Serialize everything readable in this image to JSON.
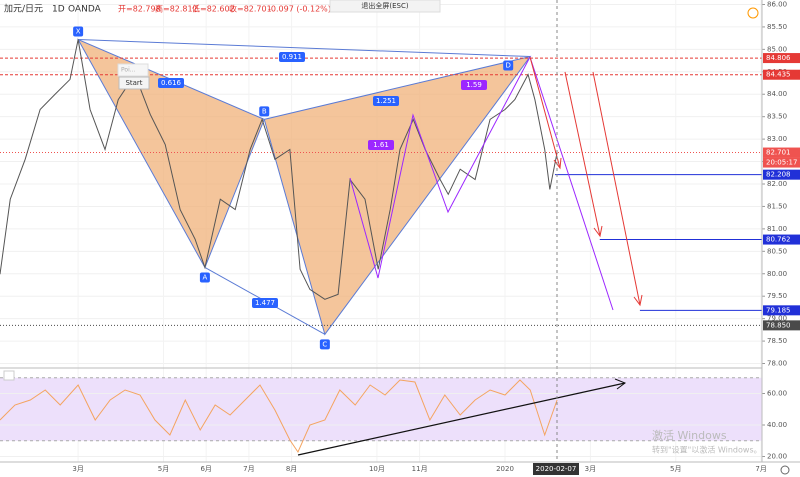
{
  "header": {
    "symbol": "加元/日元",
    "interval": "1D",
    "source": "OANDA",
    "ohlc": [
      "开=82.798",
      "高=82.812",
      "低=82.602",
      "收=82.701"
    ],
    "change": "-0.097 (-0.12%)"
  },
  "exit_fullscreen": "退出全屏(ESC)",
  "tool_popup": {
    "label": "Poi...",
    "button": "Start"
  },
  "watermark": [
    "激活 Windows",
    "转到\"设置\"以激活 Windows。"
  ],
  "date_marker": "2020-02-07",
  "chart_data": [
    {
      "type": "line",
      "color": "#555555",
      "x": [
        1.17,
        1.41,
        1.76,
        2.11,
        2.46,
        2.81,
        3.0,
        3.28,
        3.63,
        3.94,
        4.33,
        4.69,
        5.04,
        5.39,
        5.74,
        5.97,
        6.33,
        6.68,
        7.03,
        7.31,
        7.61,
        7.96,
        8.2,
        8.43,
        8.78,
        9.09,
        9.37,
        9.72,
        10.03,
        10.31,
        10.54,
        10.85,
        11.13,
        11.48,
        11.67,
        11.95,
        12.3,
        12.65,
        13.0,
        13.23,
        13.54,
        13.7,
        13.93,
        14.05,
        14.22
      ],
      "values": [
        79.99,
        81.66,
        82.55,
        83.66,
        84.0,
        84.33,
        85.22,
        83.66,
        82.77,
        83.88,
        84.44,
        83.55,
        82.88,
        81.43,
        80.77,
        80.14,
        81.66,
        81.43,
        82.77,
        83.44,
        82.55,
        82.77,
        80.1,
        79.65,
        79.43,
        79.54,
        82.1,
        81.66,
        80.1,
        81.43,
        82.77,
        83.44,
        82.77,
        82.1,
        81.77,
        82.33,
        82.1,
        83.44,
        83.66,
        83.88,
        84.44,
        83.88,
        82.77,
        81.88,
        82.7
      ],
      "xlim": [
        1.17,
        19.02
      ],
      "ylim": [
        77.9,
        86.1
      ],
      "xticks": [
        {
          "value": 3,
          "label": "3月"
        },
        {
          "value": 5,
          "label": "5月"
        },
        {
          "value": 6,
          "label": "6月"
        },
        {
          "value": 7,
          "label": "7月"
        },
        {
          "value": 8,
          "label": "8月"
        },
        {
          "value": 10,
          "label": "10月"
        },
        {
          "value": 11,
          "label": "11月"
        },
        {
          "value": 13,
          "label": "2020"
        },
        {
          "value": 15,
          "label": "3月"
        },
        {
          "value": 17,
          "label": "5月"
        },
        {
          "value": 19,
          "label": "7月"
        }
      ],
      "yticks": [
        {
          "value": 78,
          "label": "78.00"
        },
        {
          "value": 78.5,
          "label": "78.50"
        },
        {
          "value": 79,
          "label": "79.00"
        },
        {
          "value": 79.5,
          "label": "79.50"
        },
        {
          "value": 80,
          "label": "80.00"
        },
        {
          "value": 80.5,
          "label": "80.50"
        },
        {
          "value": 81,
          "label": "81.00"
        },
        {
          "value": 81.5,
          "label": "81.50"
        },
        {
          "value": 82,
          "label": "82.00"
        },
        {
          "value": 82.5,
          "label": "82.50"
        },
        {
          "value": 83,
          "label": "83.00"
        },
        {
          "value": 83.5,
          "label": "83.50"
        },
        {
          "value": 84,
          "label": "84.00"
        },
        {
          "value": 84.5,
          "label": "84.50"
        },
        {
          "value": 85,
          "label": "85.00"
        },
        {
          "value": 85.5,
          "label": "85.50"
        },
        {
          "value": 86,
          "label": "86.00"
        }
      ],
      "pattern": {
        "labels": [
          "X",
          "A",
          "B",
          "C",
          "D"
        ],
        "x": [
          3.0,
          5.97,
          7.36,
          8.78,
          13.59
        ],
        "values": [
          85.22,
          80.14,
          83.44,
          78.65,
          84.84
        ],
        "fill": "#f0b27a",
        "color": "#5b7bd5"
      },
      "ratios": [
        "0.616",
        "1.251",
        "1.477",
        "0.911",
        "1.59",
        "1.61"
      ],
      "price_labels": [
        {
          "value": 84.806,
          "color": "#e53935",
          "style": "dashed",
          "x_start": 1.17
        },
        {
          "value": 84.435,
          "color": "#e53935",
          "style": "dashed",
          "x_start": 1.17
        },
        {
          "value": 82.701,
          "color": "#ef5350",
          "style": "dotted",
          "x_start": 1.17
        },
        {
          "value": 82.208,
          "color": "#2130d8",
          "style": "solid",
          "x_start": 14.17
        },
        {
          "value": 80.762,
          "color": "#2130d8",
          "style": "solid",
          "x_start": 15.22
        },
        {
          "value": 79.185,
          "color": "#2130d8",
          "style": "solid",
          "x_start": 16.16
        },
        {
          "value": 78.85,
          "label": "78.850",
          "color": "#4a4a4a",
          "style": "dotted",
          "x_start": 1.17
        }
      ],
      "countdown": "20:05:17"
    },
    {
      "type": "line",
      "color": "#f4a460",
      "x": [
        1.17,
        1.52,
        1.88,
        2.23,
        2.58,
        3.0,
        3.4,
        3.75,
        4.1,
        4.45,
        4.8,
        5.15,
        5.51,
        5.86,
        6.21,
        6.56,
        6.91,
        7.26,
        7.61,
        7.96,
        8.15,
        8.43,
        8.78,
        9.13,
        9.49,
        9.84,
        10.19,
        10.54,
        10.89,
        11.24,
        11.59,
        11.95,
        12.3,
        12.65,
        13.0,
        13.35,
        13.59,
        13.93,
        14.22
      ],
      "values": [
        43.17,
        52.7,
        55.87,
        62.22,
        52.7,
        65.4,
        43.17,
        55.87,
        62.22,
        59.05,
        43.17,
        33.65,
        55.87,
        36.83,
        52.7,
        46.35,
        55.87,
        65.4,
        49.52,
        30.48,
        22.86,
        40.0,
        43.17,
        62.22,
        52.7,
        65.4,
        59.05,
        68.57,
        67.3,
        43.17,
        59.05,
        46.35,
        55.87,
        62.22,
        59.05,
        68.57,
        62.22,
        33.65,
        55.87
      ],
      "xlim": [
        1.17,
        19.02
      ],
      "ylim": [
        16.5,
        76.2
      ],
      "yticks": [
        {
          "value": 20,
          "label": "20.00"
        },
        {
          "value": 40,
          "label": "40.00"
        },
        {
          "value": 60,
          "label": "60.00"
        }
      ],
      "band": [
        30,
        70
      ]
    }
  ]
}
